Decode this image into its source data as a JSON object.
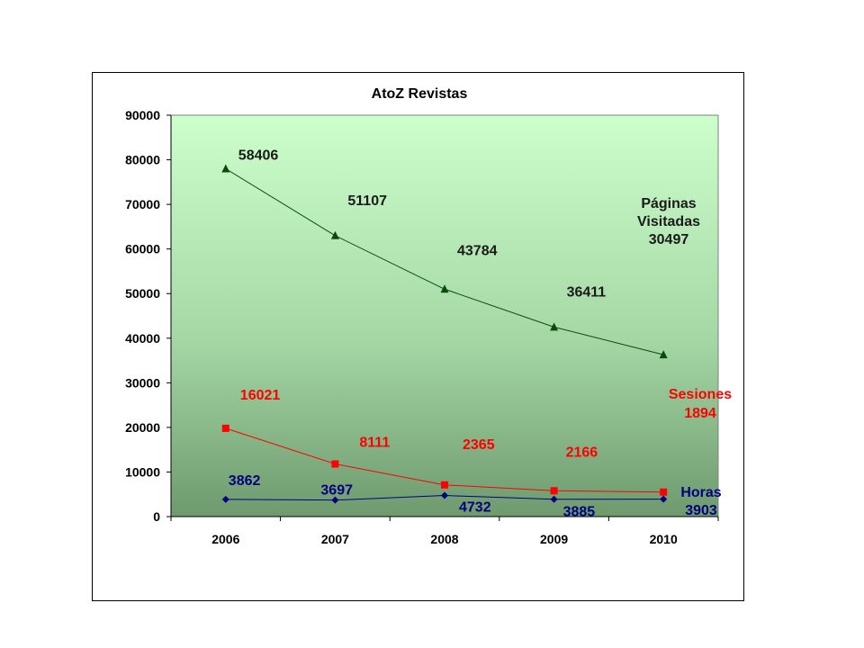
{
  "chart_data": {
    "type": "line",
    "title": "AtoZ Revistas",
    "categories": [
      "2006",
      "2007",
      "2008",
      "2009",
      "2010"
    ],
    "ylim": [
      0,
      90000
    ],
    "yticks": [
      "0",
      "10000",
      "20000",
      "30000",
      "40000",
      "50000",
      "60000",
      "70000",
      "80000",
      "90000"
    ],
    "grid": false,
    "background": "vertical gradient light green (#ccffcc) to dark green (#6e9a6e)",
    "series": [
      {
        "name": "Páginas Visitadas",
        "name_lines": [
          "Páginas",
          "Visitadas"
        ],
        "marker": "triangle",
        "color": "#0b4a0b",
        "label_color": "#1a1a1a",
        "values": [
          78000,
          63000,
          51000,
          42500,
          36300
        ],
        "labels": [
          "58406",
          "51107",
          "43784",
          "36411",
          "30497"
        ]
      },
      {
        "name": "Sesiones",
        "name_lines": [
          "Sesiones"
        ],
        "marker": "square",
        "color": "#ff0000",
        "label_color": "#ff0000",
        "values": [
          19800,
          11800,
          7100,
          5800,
          5500
        ],
        "labels": [
          "16021",
          "8111",
          "2365",
          "2166",
          "1894"
        ]
      },
      {
        "name": "Horas",
        "name_lines": [
          "Horas"
        ],
        "marker": "diamond",
        "color": "#000080",
        "label_color": "#000080",
        "values": [
          3862,
          3697,
          4732,
          3885,
          3903
        ],
        "labels": [
          "3862",
          "3697",
          "4732",
          "3885",
          "3903"
        ]
      }
    ]
  }
}
